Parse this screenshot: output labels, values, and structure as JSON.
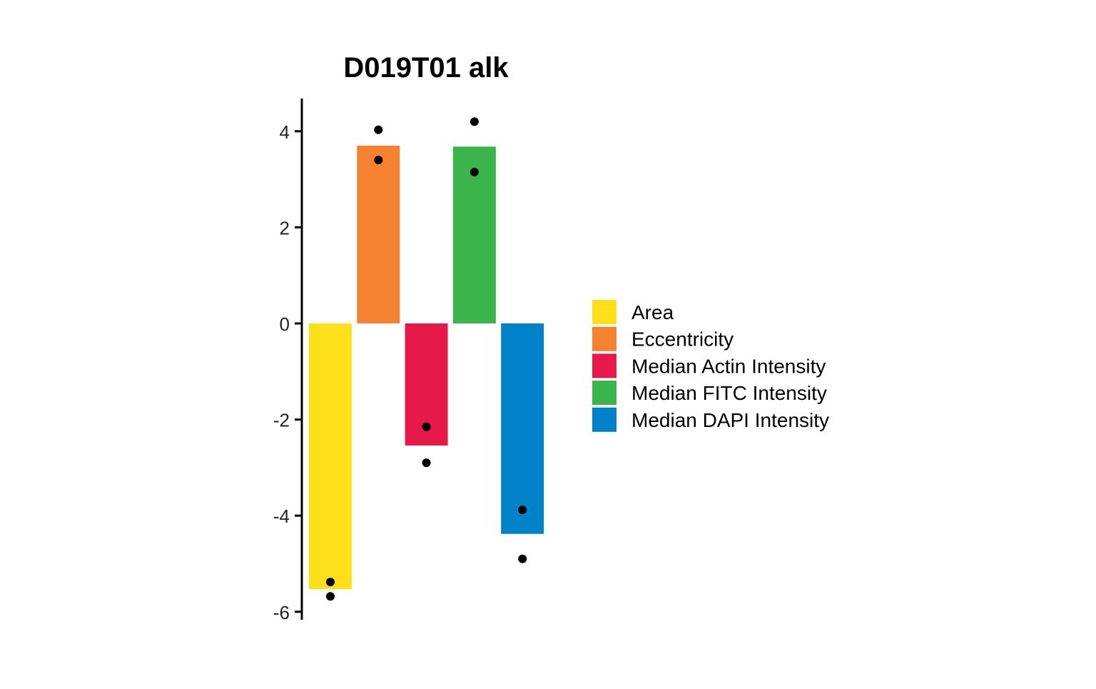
{
  "chart_data": {
    "type": "bar",
    "title": "D019T01 alk",
    "xlabel": "",
    "ylabel": "",
    "ylim": [
      -6,
      4.7
    ],
    "yticks": [
      -6,
      -4,
      -2,
      0,
      2,
      4
    ],
    "ytick_labels": [
      "-6",
      "-4",
      "-2",
      "0",
      "2",
      "4"
    ],
    "grid": false,
    "legend_position": "right",
    "categories": [
      "Area",
      "Eccentricity",
      "Median Actin Intensity",
      "Median FITC Intensity",
      "Median DAPI Intensity"
    ],
    "values": [
      -5.53,
      3.7,
      -2.54,
      3.68,
      -4.38
    ],
    "colors": [
      "#FDE01A",
      "#F58230",
      "#E5194A",
      "#3BB44B",
      "#0181C8"
    ],
    "points": [
      [
        -5.38,
        -5.68
      ],
      [
        4.03,
        3.4
      ],
      [
        -2.15,
        -2.9
      ],
      [
        4.2,
        3.15
      ],
      [
        -3.88,
        -4.9
      ]
    ],
    "legend": [
      "Area",
      "Eccentricity",
      "Median Actin Intensity",
      "Median FITC Intensity",
      "Median DAPI Intensity"
    ]
  }
}
